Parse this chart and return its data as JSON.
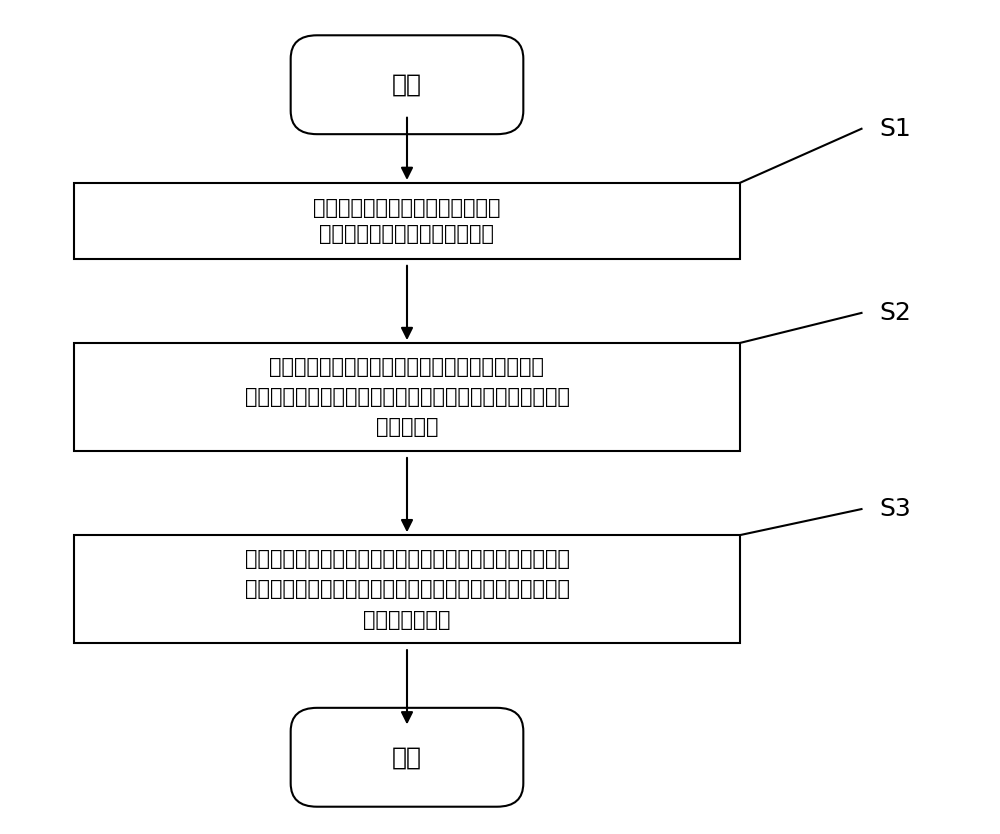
{
  "background_color": "#ffffff",
  "fig_width": 10.0,
  "fig_height": 8.34,
  "dpi": 100,
  "start_label": "开始",
  "end_label": "结束",
  "box1_line1": "对待预测区域进行城市路网建模，",
  "box1_line2": "并采集该区域内的行车轨迹数据",
  "box2_line1": "基于待预测区域对应的城市路网和行车轨迹数据，",
  "box2_line2": "通过基于多权值的最大熵逆强化学习方法提取待预测区域内",
  "box2_line3": "的流量特征",
  "box3_line1": "基于提取出的流量特征和当前交通管控方案下的城市路网，",
  "box3_line2": "通过正向强化学习方法对其进行处理，获得待预测区域的流",
  "box3_line3": "量分布预测结果",
  "label_s1": "S1",
  "label_s2": "S2",
  "label_s3": "S3",
  "box_color": "#ffffff",
  "box_edge_color": "#000000",
  "text_color": "#000000",
  "arrow_color": "#000000",
  "font_size_main": 15,
  "font_size_label": 18,
  "font_size_start_end": 18,
  "line_width": 1.5
}
